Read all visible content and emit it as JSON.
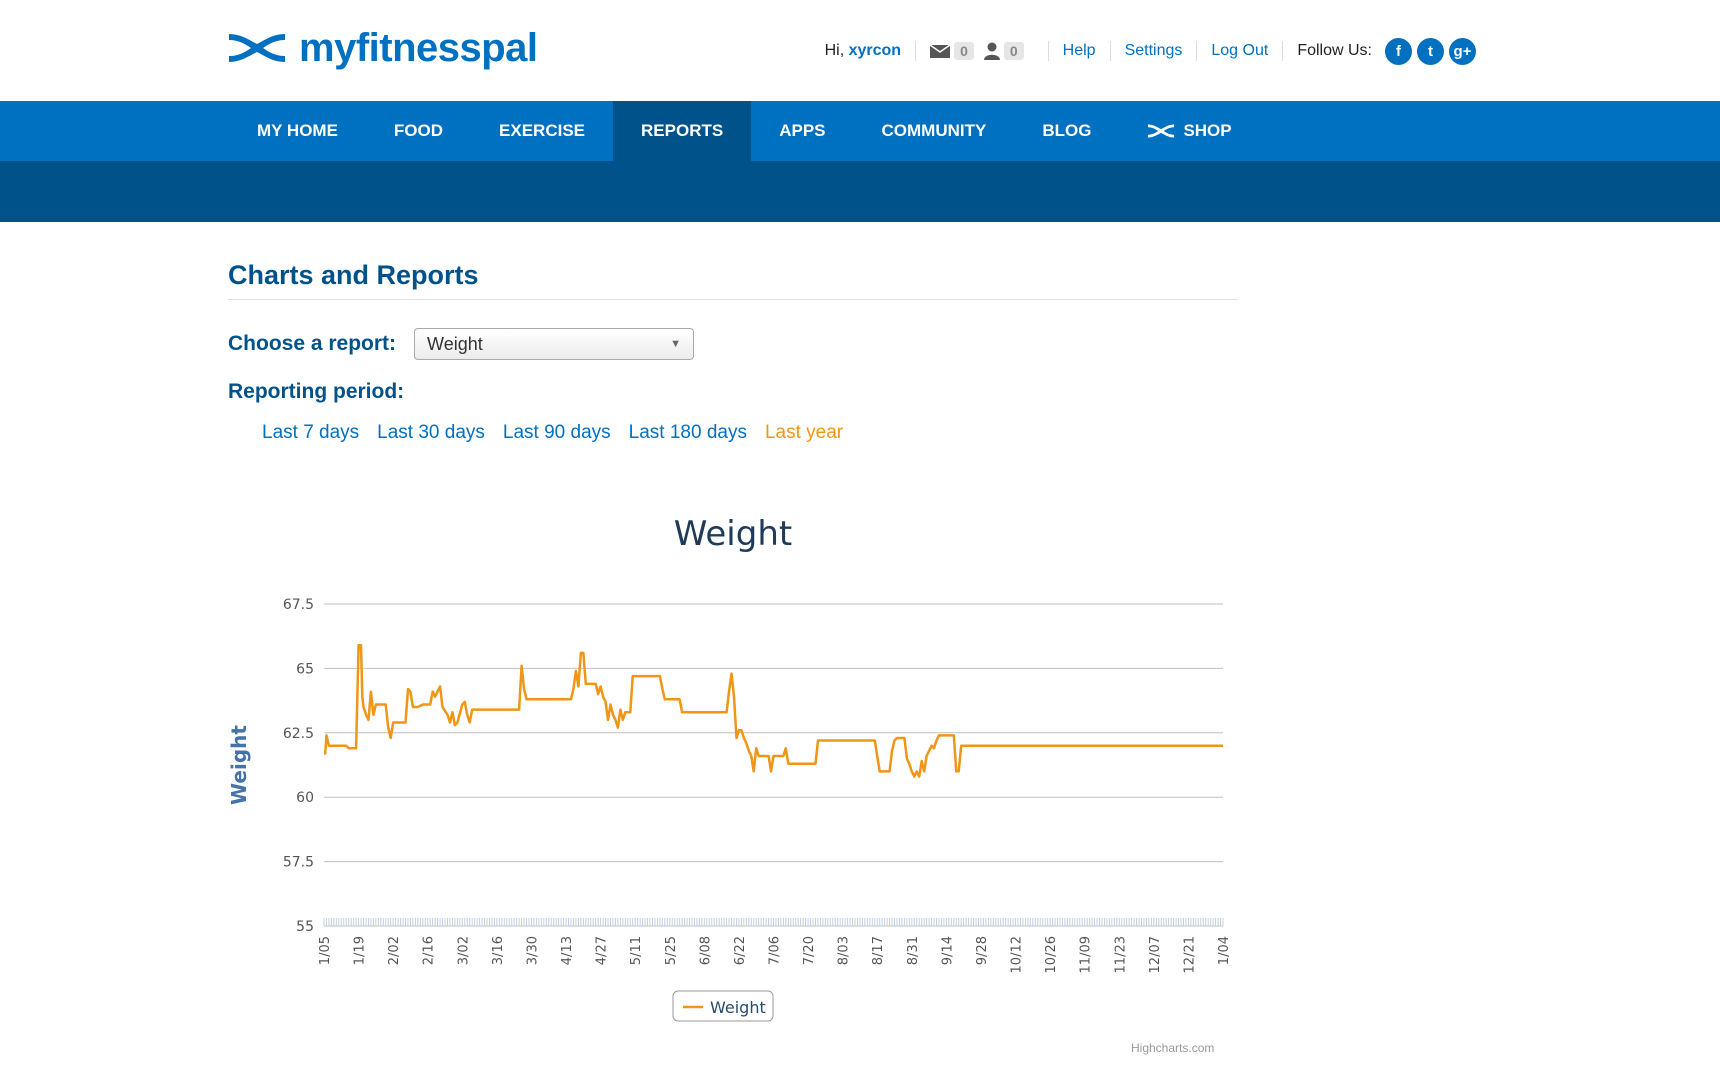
{
  "brand": {
    "name": "myfitnesspal"
  },
  "user_nav": {
    "greeting": "Hi,",
    "username": "xyrcon",
    "messages_count": "0",
    "friends_count": "0",
    "help": "Help",
    "settings": "Settings",
    "logout": "Log Out",
    "follow_us": "Follow Us:",
    "social": [
      {
        "icon": "facebook-icon",
        "glyph": "f"
      },
      {
        "icon": "twitter-icon",
        "glyph": "t"
      },
      {
        "icon": "google-plus-icon",
        "glyph": "g+"
      }
    ]
  },
  "main_nav": [
    {
      "label": "MY HOME"
    },
    {
      "label": "FOOD"
    },
    {
      "label": "EXERCISE"
    },
    {
      "label": "REPORTS",
      "active": true
    },
    {
      "label": "APPS"
    },
    {
      "label": "COMMUNITY"
    },
    {
      "label": "BLOG"
    },
    {
      "label": "SHOP"
    }
  ],
  "page": {
    "title": "Charts and Reports",
    "choose_label": "Choose a report:",
    "report_selected": "Weight",
    "period_label": "Reporting period:",
    "periods": [
      {
        "label": "Last 7 days"
      },
      {
        "label": "Last 30 days"
      },
      {
        "label": "Last 90 days"
      },
      {
        "label": "Last 180 days"
      },
      {
        "label": "Last year",
        "active": true
      }
    ]
  },
  "colors": {
    "brand_blue": "#0070c0",
    "nav_dark": "#00538a",
    "series": "#f09516"
  },
  "chart_data": {
    "type": "line",
    "title": "Weight",
    "ylabel": "Weight",
    "ylim": [
      55,
      67.5
    ],
    "yticks": [
      55,
      57.5,
      60,
      62.5,
      65,
      67.5
    ],
    "x_tick_labels": [
      "1/05",
      "1/19",
      "2/02",
      "2/16",
      "3/02",
      "3/16",
      "3/30",
      "4/13",
      "4/27",
      "5/11",
      "5/25",
      "6/08",
      "6/22",
      "7/06",
      "7/20",
      "8/03",
      "8/17",
      "8/31",
      "9/14",
      "9/28",
      "10/12",
      "10/26",
      "11/09",
      "11/23",
      "12/07",
      "12/21",
      "1/04"
    ],
    "legend": "bottom-center",
    "credit": "Highcharts.com",
    "series": [
      {
        "name": "Weight",
        "points": [
          [
            0,
            61.7
          ],
          [
            0.5,
            61.7
          ],
          [
            1,
            62.4
          ],
          [
            2,
            62.0
          ],
          [
            3,
            62.0
          ],
          [
            5,
            62.0
          ],
          [
            8,
            62.0
          ],
          [
            9,
            62.0
          ],
          [
            10,
            61.9
          ],
          [
            13,
            61.9
          ],
          [
            14,
            65.9
          ],
          [
            15,
            65.9
          ],
          [
            15.5,
            63.9
          ],
          [
            16,
            63.5
          ],
          [
            17,
            63.2
          ],
          [
            18,
            63.0
          ],
          [
            19,
            64.1
          ],
          [
            20,
            63.2
          ],
          [
            21,
            63.6
          ],
          [
            23,
            63.6
          ],
          [
            25,
            63.6
          ],
          [
            26,
            62.7
          ],
          [
            27,
            62.3
          ],
          [
            28,
            62.9
          ],
          [
            30,
            62.9
          ],
          [
            33,
            62.9
          ],
          [
            34,
            64.2
          ],
          [
            35,
            64.1
          ],
          [
            36,
            63.5
          ],
          [
            38,
            63.5
          ],
          [
            40,
            63.6
          ],
          [
            43,
            63.6
          ],
          [
            44,
            64.1
          ],
          [
            45,
            63.9
          ],
          [
            46,
            64.1
          ],
          [
            47,
            64.3
          ],
          [
            48,
            63.5
          ],
          [
            50,
            63.2
          ],
          [
            51,
            62.9
          ],
          [
            52,
            63.3
          ],
          [
            53,
            62.8
          ],
          [
            54,
            62.9
          ],
          [
            56,
            63.6
          ],
          [
            57,
            63.7
          ],
          [
            58,
            63.2
          ],
          [
            59,
            62.9
          ],
          [
            60,
            63.4
          ],
          [
            62,
            63.4
          ],
          [
            66,
            63.4
          ],
          [
            70,
            63.4
          ],
          [
            75,
            63.4
          ],
          [
            79,
            63.4
          ],
          [
            80,
            65.1
          ],
          [
            81,
            64.2
          ],
          [
            82,
            63.8
          ],
          [
            84,
            63.8
          ],
          [
            88,
            63.8
          ],
          [
            93,
            63.8
          ],
          [
            98,
            63.8
          ],
          [
            100,
            63.8
          ],
          [
            101,
            64.2
          ],
          [
            102,
            64.9
          ],
          [
            103,
            64.3
          ],
          [
            104,
            65.6
          ],
          [
            105,
            65.6
          ],
          [
            106,
            64.4
          ],
          [
            108,
            64.4
          ],
          [
            110,
            64.4
          ],
          [
            111,
            64.0
          ],
          [
            112,
            64.3
          ],
          [
            113,
            63.9
          ],
          [
            114,
            63.7
          ],
          [
            115,
            63.0
          ],
          [
            116,
            63.6
          ],
          [
            117,
            63.2
          ],
          [
            118,
            63.0
          ],
          [
            119,
            62.7
          ],
          [
            120,
            63.4
          ],
          [
            121,
            63.0
          ],
          [
            122,
            63.3
          ],
          [
            124,
            63.3
          ],
          [
            125,
            64.7
          ],
          [
            128,
            64.7
          ],
          [
            132,
            64.7
          ],
          [
            136,
            64.7
          ],
          [
            137,
            64.2
          ],
          [
            138,
            63.8
          ],
          [
            140,
            63.8
          ],
          [
            142,
            63.8
          ],
          [
            144,
            63.8
          ],
          [
            145,
            63.3
          ],
          [
            148,
            63.3
          ],
          [
            152,
            63.3
          ],
          [
            156,
            63.3
          ],
          [
            160,
            63.3
          ],
          [
            163,
            63.3
          ],
          [
            164,
            64.1
          ],
          [
            165,
            64.8
          ],
          [
            166,
            63.9
          ],
          [
            167,
            62.3
          ],
          [
            168,
            62.6
          ],
          [
            169,
            62.6
          ],
          [
            170,
            62.3
          ],
          [
            171,
            62.1
          ],
          [
            172,
            61.8
          ],
          [
            173,
            61.6
          ],
          [
            174,
            61.0
          ],
          [
            175,
            61.9
          ],
          [
            176,
            61.6
          ],
          [
            178,
            61.6
          ],
          [
            180,
            61.6
          ],
          [
            181,
            61.0
          ],
          [
            182,
            61.6
          ],
          [
            183,
            61.6
          ],
          [
            184,
            61.6
          ],
          [
            185,
            61.6
          ],
          [
            186,
            61.6
          ],
          [
            187,
            61.9
          ],
          [
            188,
            61.3
          ],
          [
            190,
            61.3
          ],
          [
            193,
            61.3
          ],
          [
            196,
            61.3
          ],
          [
            199,
            61.3
          ],
          [
            200,
            62.2
          ],
          [
            204,
            62.2
          ],
          [
            208,
            62.2
          ],
          [
            212,
            62.2
          ],
          [
            216,
            62.2
          ],
          [
            220,
            62.2
          ],
          [
            223,
            62.2
          ],
          [
            224,
            61.6
          ],
          [
            225,
            61.0
          ],
          [
            228,
            61.0
          ],
          [
            229,
            61.0
          ],
          [
            230,
            61.8
          ],
          [
            231,
            62.2
          ],
          [
            232,
            62.3
          ],
          [
            234,
            62.3
          ],
          [
            235,
            62.3
          ],
          [
            236,
            61.5
          ],
          [
            237,
            61.3
          ],
          [
            238,
            61.0
          ],
          [
            239,
            60.8
          ],
          [
            240,
            61.0
          ],
          [
            241,
            60.8
          ],
          [
            242,
            61.4
          ],
          [
            243,
            61.0
          ],
          [
            244,
            61.6
          ],
          [
            245,
            61.8
          ],
          [
            246,
            62.0
          ],
          [
            247,
            61.9
          ],
          [
            248,
            62.2
          ],
          [
            249,
            62.4
          ],
          [
            251,
            62.4
          ],
          [
            253,
            62.4
          ],
          [
            255,
            62.4
          ],
          [
            256,
            61.0
          ],
          [
            257,
            61.0
          ],
          [
            258,
            62.0
          ],
          [
            262,
            62.0
          ],
          [
            270,
            62.0
          ],
          [
            280,
            62.0
          ],
          [
            290,
            62.0
          ],
          [
            300,
            62.0
          ],
          [
            310,
            62.0
          ],
          [
            320,
            62.0
          ],
          [
            330,
            62.0
          ],
          [
            340,
            62.0
          ],
          [
            350,
            62.0
          ],
          [
            360,
            62.0
          ],
          [
            364,
            62.0
          ]
        ]
      }
    ]
  }
}
